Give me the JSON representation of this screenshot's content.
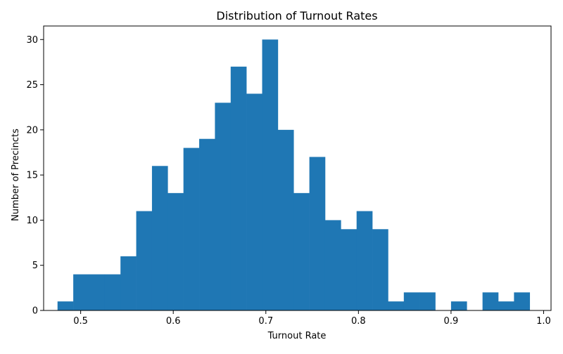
{
  "chart_data": {
    "type": "bar",
    "title": "Distribution of Turnout Rates",
    "xlabel": "Turnout Rate",
    "ylabel": "Number of Precincts",
    "bar_color": "#1f77b4",
    "xlim": [
      0.46,
      1.008
    ],
    "ylim": [
      0,
      31.5
    ],
    "bin_start": 0.475,
    "bin_width": 0.017,
    "values": [
      1,
      4,
      4,
      4,
      6,
      11,
      16,
      13,
      18,
      19,
      23,
      27,
      24,
      30,
      20,
      13,
      17,
      10,
      9,
      11,
      9,
      1,
      2,
      2,
      0,
      1,
      0,
      2,
      1,
      2
    ],
    "x_ticks": [
      {
        "value": 0.5,
        "label": "0.5"
      },
      {
        "value": 0.6,
        "label": "0.6"
      },
      {
        "value": 0.7,
        "label": "0.7"
      },
      {
        "value": 0.8,
        "label": "0.8"
      },
      {
        "value": 0.9,
        "label": "0.9"
      },
      {
        "value": 1.0,
        "label": "1.0"
      }
    ],
    "y_ticks": [
      {
        "value": 0,
        "label": "0"
      },
      {
        "value": 5,
        "label": "5"
      },
      {
        "value": 10,
        "label": "10"
      },
      {
        "value": 15,
        "label": "15"
      },
      {
        "value": 20,
        "label": "20"
      },
      {
        "value": 25,
        "label": "25"
      },
      {
        "value": 30,
        "label": "30"
      }
    ],
    "grid": false,
    "legend": "none"
  }
}
